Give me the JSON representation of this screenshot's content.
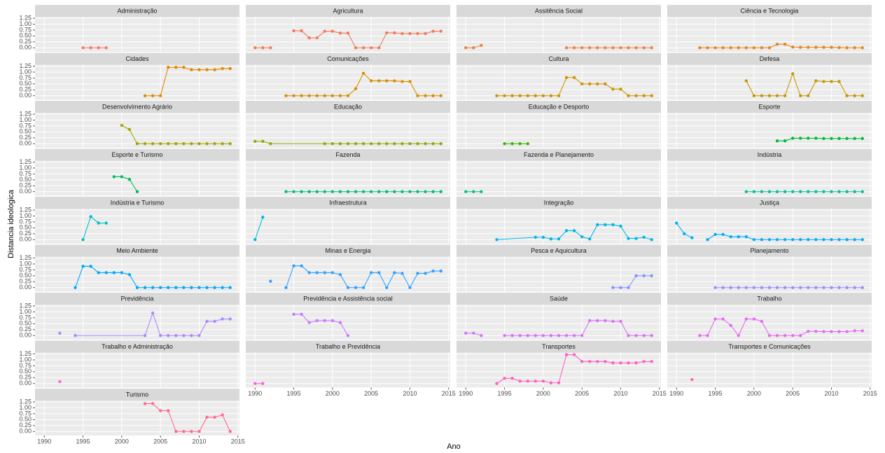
{
  "chart_data": {
    "type": "line",
    "x_label": "Ano",
    "y_label": "Distancia ideologica",
    "xlim": [
      1988.8,
      2015.2
    ],
    "ylim": [
      -0.17,
      1.31
    ],
    "xticks": [
      1990,
      1995,
      2000,
      2005,
      2010,
      2015
    ],
    "yticks": [
      {
        "value": 0,
        "label": "0.00"
      },
      {
        "value": 0.25,
        "label": "0.25"
      },
      {
        "value": 0.5,
        "label": "0.50"
      },
      {
        "value": 0.75,
        "label": "0.75"
      },
      {
        "value": 1,
        "label": "1.00"
      },
      {
        "value": 1.25,
        "label": "1.25"
      }
    ],
    "grid": true,
    "facets": [
      {
        "title": "Administração",
        "color": "#F8766D",
        "x": [
          1995,
          1996,
          1997,
          1998
        ],
        "values": [
          0,
          0,
          0,
          0
        ]
      },
      {
        "title": "Agricultura",
        "color": "#F37B59",
        "x": [
          1990,
          1991,
          1992,
          1993,
          1995,
          1996,
          1997,
          1998,
          1999,
          2000,
          2001,
          2002,
          2003,
          2004,
          2005,
          2006,
          2007,
          2008,
          2009,
          2010,
          2011,
          2012,
          2013,
          2014
        ],
        "values": [
          0,
          0,
          0,
          null,
          0.72,
          0.72,
          0.42,
          0.42,
          0.7,
          0.7,
          0.62,
          0.62,
          0,
          0,
          0,
          0,
          0.63,
          0.63,
          0.6,
          0.6,
          0.6,
          0.6,
          0.7,
          0.7
        ]
      },
      {
        "title": "Assitência Social",
        "color": "#ED8141",
        "x": [
          1990,
          1991,
          1992,
          1993,
          2003,
          2004,
          2005,
          2006,
          2007,
          2008,
          2009,
          2010,
          2011,
          2012,
          2013,
          2014
        ],
        "values": [
          0,
          0,
          0.1,
          null,
          0,
          0,
          0,
          0,
          0,
          0,
          0,
          0,
          0,
          0,
          0,
          0
        ]
      },
      {
        "title": "Ciência e Tecnologia",
        "color": "#E7861B",
        "x": [
          1993,
          1994,
          1995,
          1996,
          1997,
          1998,
          1999,
          2000,
          2001,
          2002,
          2003,
          2004,
          2005,
          2006,
          2007,
          2008,
          2009,
          2010,
          2011,
          2012,
          2013,
          2014
        ],
        "values": [
          0,
          0,
          0,
          0,
          0,
          0,
          0,
          0,
          0,
          0,
          0.15,
          0.15,
          0.03,
          0.02,
          0.02,
          0.02,
          0.02,
          0.02,
          0.01,
          0,
          0,
          0
        ]
      },
      {
        "title": "Cidades",
        "color": "#E08B00",
        "x": [
          2003,
          2004,
          2005,
          2006,
          2007,
          2008,
          2009,
          2010,
          2011,
          2012,
          2013,
          2014
        ],
        "values": [
          0,
          0,
          0,
          1.2,
          1.2,
          1.2,
          1.1,
          1.1,
          1.1,
          1.1,
          1.15,
          1.15
        ]
      },
      {
        "title": "Comunicações",
        "color": "#D89000",
        "x": [
          1994,
          1995,
          1996,
          1997,
          1998,
          1999,
          2000,
          2001,
          2002,
          2003,
          2004,
          2005,
          2006,
          2007,
          2008,
          2009,
          2010,
          2011,
          2012,
          2013,
          2014
        ],
        "values": [
          0,
          0,
          0,
          0,
          0,
          0,
          0,
          0,
          0,
          0.3,
          0.95,
          0.63,
          0.63,
          0.63,
          0.63,
          0.6,
          0.6,
          0,
          0,
          0,
          0
        ]
      },
      {
        "title": "Cultura",
        "color": "#CF9400",
        "x": [
          1994,
          1995,
          1996,
          1997,
          1998,
          1999,
          2000,
          2001,
          2002,
          2003,
          2004,
          2005,
          2006,
          2007,
          2008,
          2009,
          2010,
          2011,
          2012,
          2013,
          2014
        ],
        "values": [
          0,
          0,
          0,
          0,
          0,
          0,
          0,
          0,
          0,
          0.77,
          0.77,
          0.5,
          0.5,
          0.5,
          0.5,
          0.28,
          0.28,
          0,
          0,
          0,
          0
        ]
      },
      {
        "title": "Defesa",
        "color": "#C59900",
        "x": [
          1999,
          2000,
          2001,
          2002,
          2003,
          2004,
          2005,
          2006,
          2007,
          2008,
          2009,
          2010,
          2011,
          2012,
          2013,
          2014
        ],
        "values": [
          0.63,
          0,
          0,
          0,
          0,
          0,
          0.93,
          0,
          0,
          0.63,
          0.6,
          0.6,
          0.6,
          0,
          0,
          0
        ]
      },
      {
        "title": "Desenvolvimento Agrário",
        "color": "#A3A500",
        "x": [
          2000,
          2001,
          2002,
          2003,
          2004,
          2005,
          2006,
          2007,
          2008,
          2009,
          2010,
          2011,
          2012,
          2013,
          2014
        ],
        "values": [
          0.78,
          0.6,
          0,
          0,
          0,
          0,
          0,
          0,
          0,
          0,
          0,
          0,
          0,
          0,
          0
        ]
      },
      {
        "title": "Educação",
        "color": "#8FAA00",
        "x": [
          1990,
          1991,
          1992,
          1999,
          2000,
          2001,
          2002,
          2003,
          2004,
          2005,
          2006,
          2007,
          2008,
          2009,
          2010,
          2011,
          2012,
          2013,
          2014
        ],
        "values": [
          0.1,
          0.1,
          0,
          0,
          0,
          0,
          0,
          0,
          0,
          0,
          0,
          0,
          0,
          0,
          0,
          0,
          0,
          0,
          0
        ]
      },
      {
        "title": "Educação e Desporto",
        "color": "#39B600",
        "x": [
          1995,
          1996,
          1997,
          1998
        ],
        "values": [
          0,
          0,
          0,
          0
        ]
      },
      {
        "title": "Esporte",
        "color": "#00BA38",
        "x": [
          2003,
          2004,
          2005,
          2006,
          2007,
          2008,
          2009,
          2010,
          2011,
          2012,
          2013,
          2014
        ],
        "values": [
          0.12,
          0.12,
          0.23,
          0.23,
          0.23,
          0.23,
          0.22,
          0.22,
          0.22,
          0.22,
          0.22,
          0.22
        ]
      },
      {
        "title": "Esporte e Turismo",
        "color": "#00BD5C",
        "x": [
          1999,
          2000,
          2001,
          2002
        ],
        "values": [
          0.63,
          0.63,
          0.52,
          0
        ]
      },
      {
        "title": "Fazenda",
        "color": "#00C078",
        "x": [
          1994,
          1995,
          1996,
          1997,
          1998,
          1999,
          2000,
          2001,
          2002,
          2003,
          2004,
          2005,
          2006,
          2007,
          2008,
          2009,
          2010,
          2011,
          2012,
          2013,
          2014
        ],
        "values": [
          0,
          0,
          0,
          0,
          0,
          0,
          0,
          0,
          0,
          0,
          0,
          0,
          0,
          0,
          0,
          0,
          0,
          0,
          0,
          0,
          0
        ]
      },
      {
        "title": "Fazenda e Planejamento",
        "color": "#00C08B",
        "x": [
          1990,
          1991,
          1992
        ],
        "values": [
          0,
          0,
          0
        ]
      },
      {
        "title": "Indústria",
        "color": "#00C19F",
        "x": [
          1999,
          2000,
          2001,
          2002,
          2003,
          2004,
          2005,
          2006,
          2007,
          2008,
          2009,
          2010,
          2011,
          2012,
          2013,
          2014
        ],
        "values": [
          0,
          0,
          0,
          0,
          0,
          0,
          0,
          0,
          0,
          0,
          0,
          0,
          0,
          0,
          0,
          0
        ]
      },
      {
        "title": "Indústria e Turismo",
        "color": "#00BFC4",
        "x": [
          1995,
          1996,
          1997,
          1998
        ],
        "values": [
          0,
          0.97,
          0.7,
          0.7
        ]
      },
      {
        "title": "Infraestrutura",
        "color": "#00BCD8",
        "x": [
          1990,
          1991
        ],
        "values": [
          0,
          0.95
        ]
      },
      {
        "title": "Integração",
        "color": "#00B8E7",
        "x": [
          1994,
          1999,
          2000,
          2001,
          2002,
          2003,
          2004,
          2005,
          2006,
          2007,
          2008,
          2009,
          2010,
          2011,
          2012,
          2013,
          2014
        ],
        "values": [
          0,
          0.1,
          0.1,
          0.03,
          0.03,
          0.38,
          0.38,
          0.12,
          0.03,
          0.63,
          0.63,
          0.63,
          0.57,
          0.05,
          0.05,
          0.1,
          0
        ]
      },
      {
        "title": "Justiça",
        "color": "#00B0F6",
        "x": [
          1990,
          1991,
          1992,
          1993,
          1994,
          1995,
          1996,
          1997,
          1998,
          1999,
          2000,
          2001,
          2002,
          2003,
          2004,
          2005,
          2006,
          2007,
          2008,
          2009,
          2010,
          2011,
          2012,
          2013,
          2014
        ],
        "values": [
          0.7,
          0.25,
          0.08,
          null,
          0,
          0.22,
          0.22,
          0.12,
          0.12,
          0.12,
          0,
          0,
          0,
          0,
          0,
          0,
          0,
          0,
          0,
          0,
          0,
          0,
          0,
          0,
          0
        ]
      },
      {
        "title": "Meio Ambiente",
        "color": "#00A9FF",
        "x": [
          1994,
          1995,
          1996,
          1997,
          1998,
          1999,
          2000,
          2001,
          2002,
          2003,
          2004,
          2005,
          2006,
          2007,
          2008,
          2009,
          2010,
          2011,
          2012,
          2013,
          2014
        ],
        "values": [
          0,
          0.9,
          0.9,
          0.63,
          0.63,
          0.63,
          0.63,
          0.55,
          0,
          0,
          0,
          0,
          0,
          0,
          0,
          0,
          0,
          0,
          0,
          0,
          0
        ]
      },
      {
        "title": "Minas e Energia",
        "color": "#35A2FF",
        "x": [
          1992,
          1993,
          1994,
          1995,
          1996,
          1997,
          1998,
          1999,
          2000,
          2001,
          2002,
          2003,
          2004,
          2005,
          2006,
          2007,
          2008,
          2009,
          2010,
          2011,
          2012,
          2013,
          2014
        ],
        "values": [
          0.27,
          null,
          0,
          0.92,
          0.92,
          0.63,
          0.63,
          0.63,
          0.63,
          0.55,
          0,
          0,
          0,
          0.63,
          0.63,
          0,
          0.63,
          0.6,
          0,
          0.6,
          0.6,
          0.7,
          0.7
        ]
      },
      {
        "title": "Pesca e Aquicultura",
        "color": "#7F96FF",
        "x": [
          2009,
          2010,
          2011,
          2012,
          2013,
          2014
        ],
        "values": [
          0,
          0,
          0,
          0.5,
          0.5,
          0.5
        ]
      },
      {
        "title": "Planejamento",
        "color": "#9590FF",
        "x": [
          1995,
          1996,
          1997,
          1998,
          1999,
          2000,
          2001,
          2002,
          2003,
          2004,
          2005,
          2006,
          2007,
          2008,
          2009,
          2010,
          2011,
          2012,
          2013,
          2014
        ],
        "values": [
          0,
          0,
          0,
          0,
          0,
          0,
          0,
          0,
          0,
          0,
          0,
          0,
          0,
          0,
          0,
          0,
          0,
          0,
          0,
          0
        ]
      },
      {
        "title": "Previdência",
        "color": "#AC88FF",
        "x": [
          1992,
          1993,
          1994,
          2003,
          2004,
          2005,
          2006,
          2007,
          2008,
          2009,
          2010,
          2011,
          2012,
          2013,
          2014
        ],
        "values": [
          0.1,
          null,
          0,
          0,
          0.95,
          0,
          0,
          0,
          0,
          0,
          0,
          0.6,
          0.6,
          0.7,
          0.7
        ]
      },
      {
        "title": "Previdência e Assistência social",
        "color": "#C77CFF",
        "x": [
          1995,
          1996,
          1997,
          1998,
          1999,
          2000,
          2001,
          2002
        ],
        "values": [
          0.9,
          0.9,
          0.55,
          0.63,
          0.63,
          0.63,
          0.55,
          0
        ]
      },
      {
        "title": "Saúde",
        "color": "#DC71FA",
        "x": [
          1990,
          1991,
          1992,
          1993,
          1995,
          1996,
          1997,
          1998,
          1999,
          2000,
          2001,
          2002,
          2003,
          2004,
          2005,
          2006,
          2007,
          2008,
          2009,
          2010,
          2011,
          2012,
          2013,
          2014
        ],
        "values": [
          0.1,
          0.1,
          0,
          null,
          0,
          0,
          0,
          0,
          0,
          0,
          0,
          0,
          0,
          0,
          0,
          0.63,
          0.63,
          0.63,
          0.6,
          0.6,
          0,
          0,
          0,
          0
        ]
      },
      {
        "title": "Trabalho",
        "color": "#E76BF3",
        "x": [
          1993,
          1994,
          1995,
          1996,
          1997,
          1998,
          1999,
          2000,
          2001,
          2002,
          2003,
          2004,
          2005,
          2006,
          2007,
          2008,
          2009,
          2010,
          2011,
          2012,
          2013,
          2014
        ],
        "values": [
          0,
          0,
          0.7,
          0.7,
          0.43,
          0,
          0.7,
          0.7,
          0.6,
          0,
          0,
          0,
          0,
          0,
          0.18,
          0.18,
          0.17,
          0.17,
          0.17,
          0.17,
          0.2,
          0.2
        ]
      },
      {
        "title": "Trabalho e Administração",
        "color": "#F265E7",
        "x": [
          1992
        ],
        "values": [
          0.08
        ]
      },
      {
        "title": "Trabalho e Previdência",
        "color": "#FA62DB",
        "x": [
          1990,
          1991
        ],
        "values": [
          0,
          0
        ]
      },
      {
        "title": "Transportes",
        "color": "#FF61C3",
        "x": [
          1994,
          1995,
          1996,
          1997,
          1998,
          1999,
          2000,
          2001,
          2002,
          2003,
          2004,
          2005,
          2006,
          2007,
          2008,
          2009,
          2010,
          2011,
          2012,
          2013,
          2014
        ],
        "values": [
          0,
          0.22,
          0.22,
          0.1,
          0.1,
          0.1,
          0.1,
          0.03,
          0.03,
          1.22,
          1.22,
          0.93,
          0.93,
          0.93,
          0.93,
          0.87,
          0.87,
          0.87,
          0.87,
          0.93,
          0.93
        ]
      },
      {
        "title": "Transportes e Comunicações",
        "color": "#FF66A8",
        "x": [
          1992
        ],
        "values": [
          0.17
        ]
      },
      {
        "title": "Turismo",
        "color": "#FF6C91",
        "x": [
          2003,
          2004,
          2005,
          2006,
          2007,
          2008,
          2009,
          2010,
          2011,
          2012,
          2013,
          2014
        ],
        "values": [
          1.18,
          1.18,
          0.88,
          0.88,
          0,
          0,
          0,
          0,
          0.6,
          0.6,
          0.7,
          0
        ]
      }
    ]
  }
}
